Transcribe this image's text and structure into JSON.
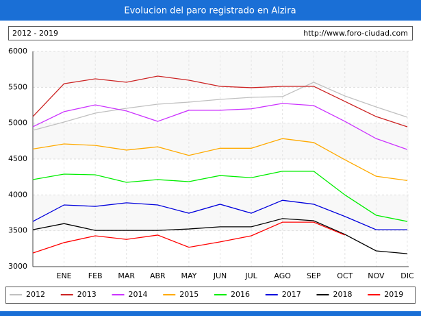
{
  "chart_data": {
    "type": "line",
    "title": "Evolucion del paro registrado en Alzira",
    "subtitle": "2012 - 2019",
    "source": "http://www.foro-ciudad.com",
    "categories": [
      null,
      "ENE",
      "FEB",
      "MAR",
      "ABR",
      "MAY",
      "JUN",
      "JUL",
      "AGO",
      "SEP",
      "OCT",
      "NOV",
      "DIC"
    ],
    "ylim": [
      3000,
      6000
    ],
    "yticks": [
      3000,
      3500,
      4000,
      4500,
      5000,
      5500,
      6000
    ],
    "grid": true,
    "series": [
      {
        "name": "2012",
        "color": "#c0c0c0",
        "values": [
          4900,
          5016,
          5140,
          5207,
          5264,
          5293,
          5331,
          5360,
          5370,
          5570,
          5379,
          5226,
          5083
        ]
      },
      {
        "name": "2013",
        "color": "#cc2222",
        "values": [
          5092,
          5550,
          5618,
          5570,
          5656,
          5599,
          5513,
          5494,
          5513,
          5513,
          5303,
          5092,
          4949
        ]
      },
      {
        "name": "2014",
        "color": "#cc33ff",
        "values": [
          4950,
          5160,
          5255,
          5170,
          5025,
          5180,
          5180,
          5200,
          5275,
          5245,
          5025,
          4785,
          4633
        ]
      },
      {
        "name": "2015",
        "color": "#ffaa00",
        "values": [
          4640,
          4710,
          4690,
          4625,
          4670,
          4550,
          4650,
          4650,
          4785,
          4730,
          4490,
          4260,
          4200
        ]
      },
      {
        "name": "2016",
        "color": "#00ee00",
        "values": [
          4213,
          4290,
          4280,
          4175,
          4213,
          4185,
          4270,
          4240,
          4330,
          4330,
          4000,
          3717,
          3630
        ]
      },
      {
        "name": "2017",
        "color": "#0000dd",
        "values": [
          3630,
          3860,
          3840,
          3890,
          3860,
          3745,
          3870,
          3745,
          3925,
          3870,
          3700,
          3515,
          3515
        ]
      },
      {
        "name": "2018",
        "color": "#000000",
        "values": [
          3515,
          3600,
          3505,
          3505,
          3505,
          3525,
          3555,
          3555,
          3670,
          3640,
          3450,
          3220,
          3180
        ]
      },
      {
        "name": "2019",
        "color": "#ff0000",
        "values": [
          3190,
          3335,
          3430,
          3380,
          3440,
          3270,
          3345,
          3430,
          3620,
          3620,
          3440,
          null,
          null
        ]
      }
    ]
  }
}
